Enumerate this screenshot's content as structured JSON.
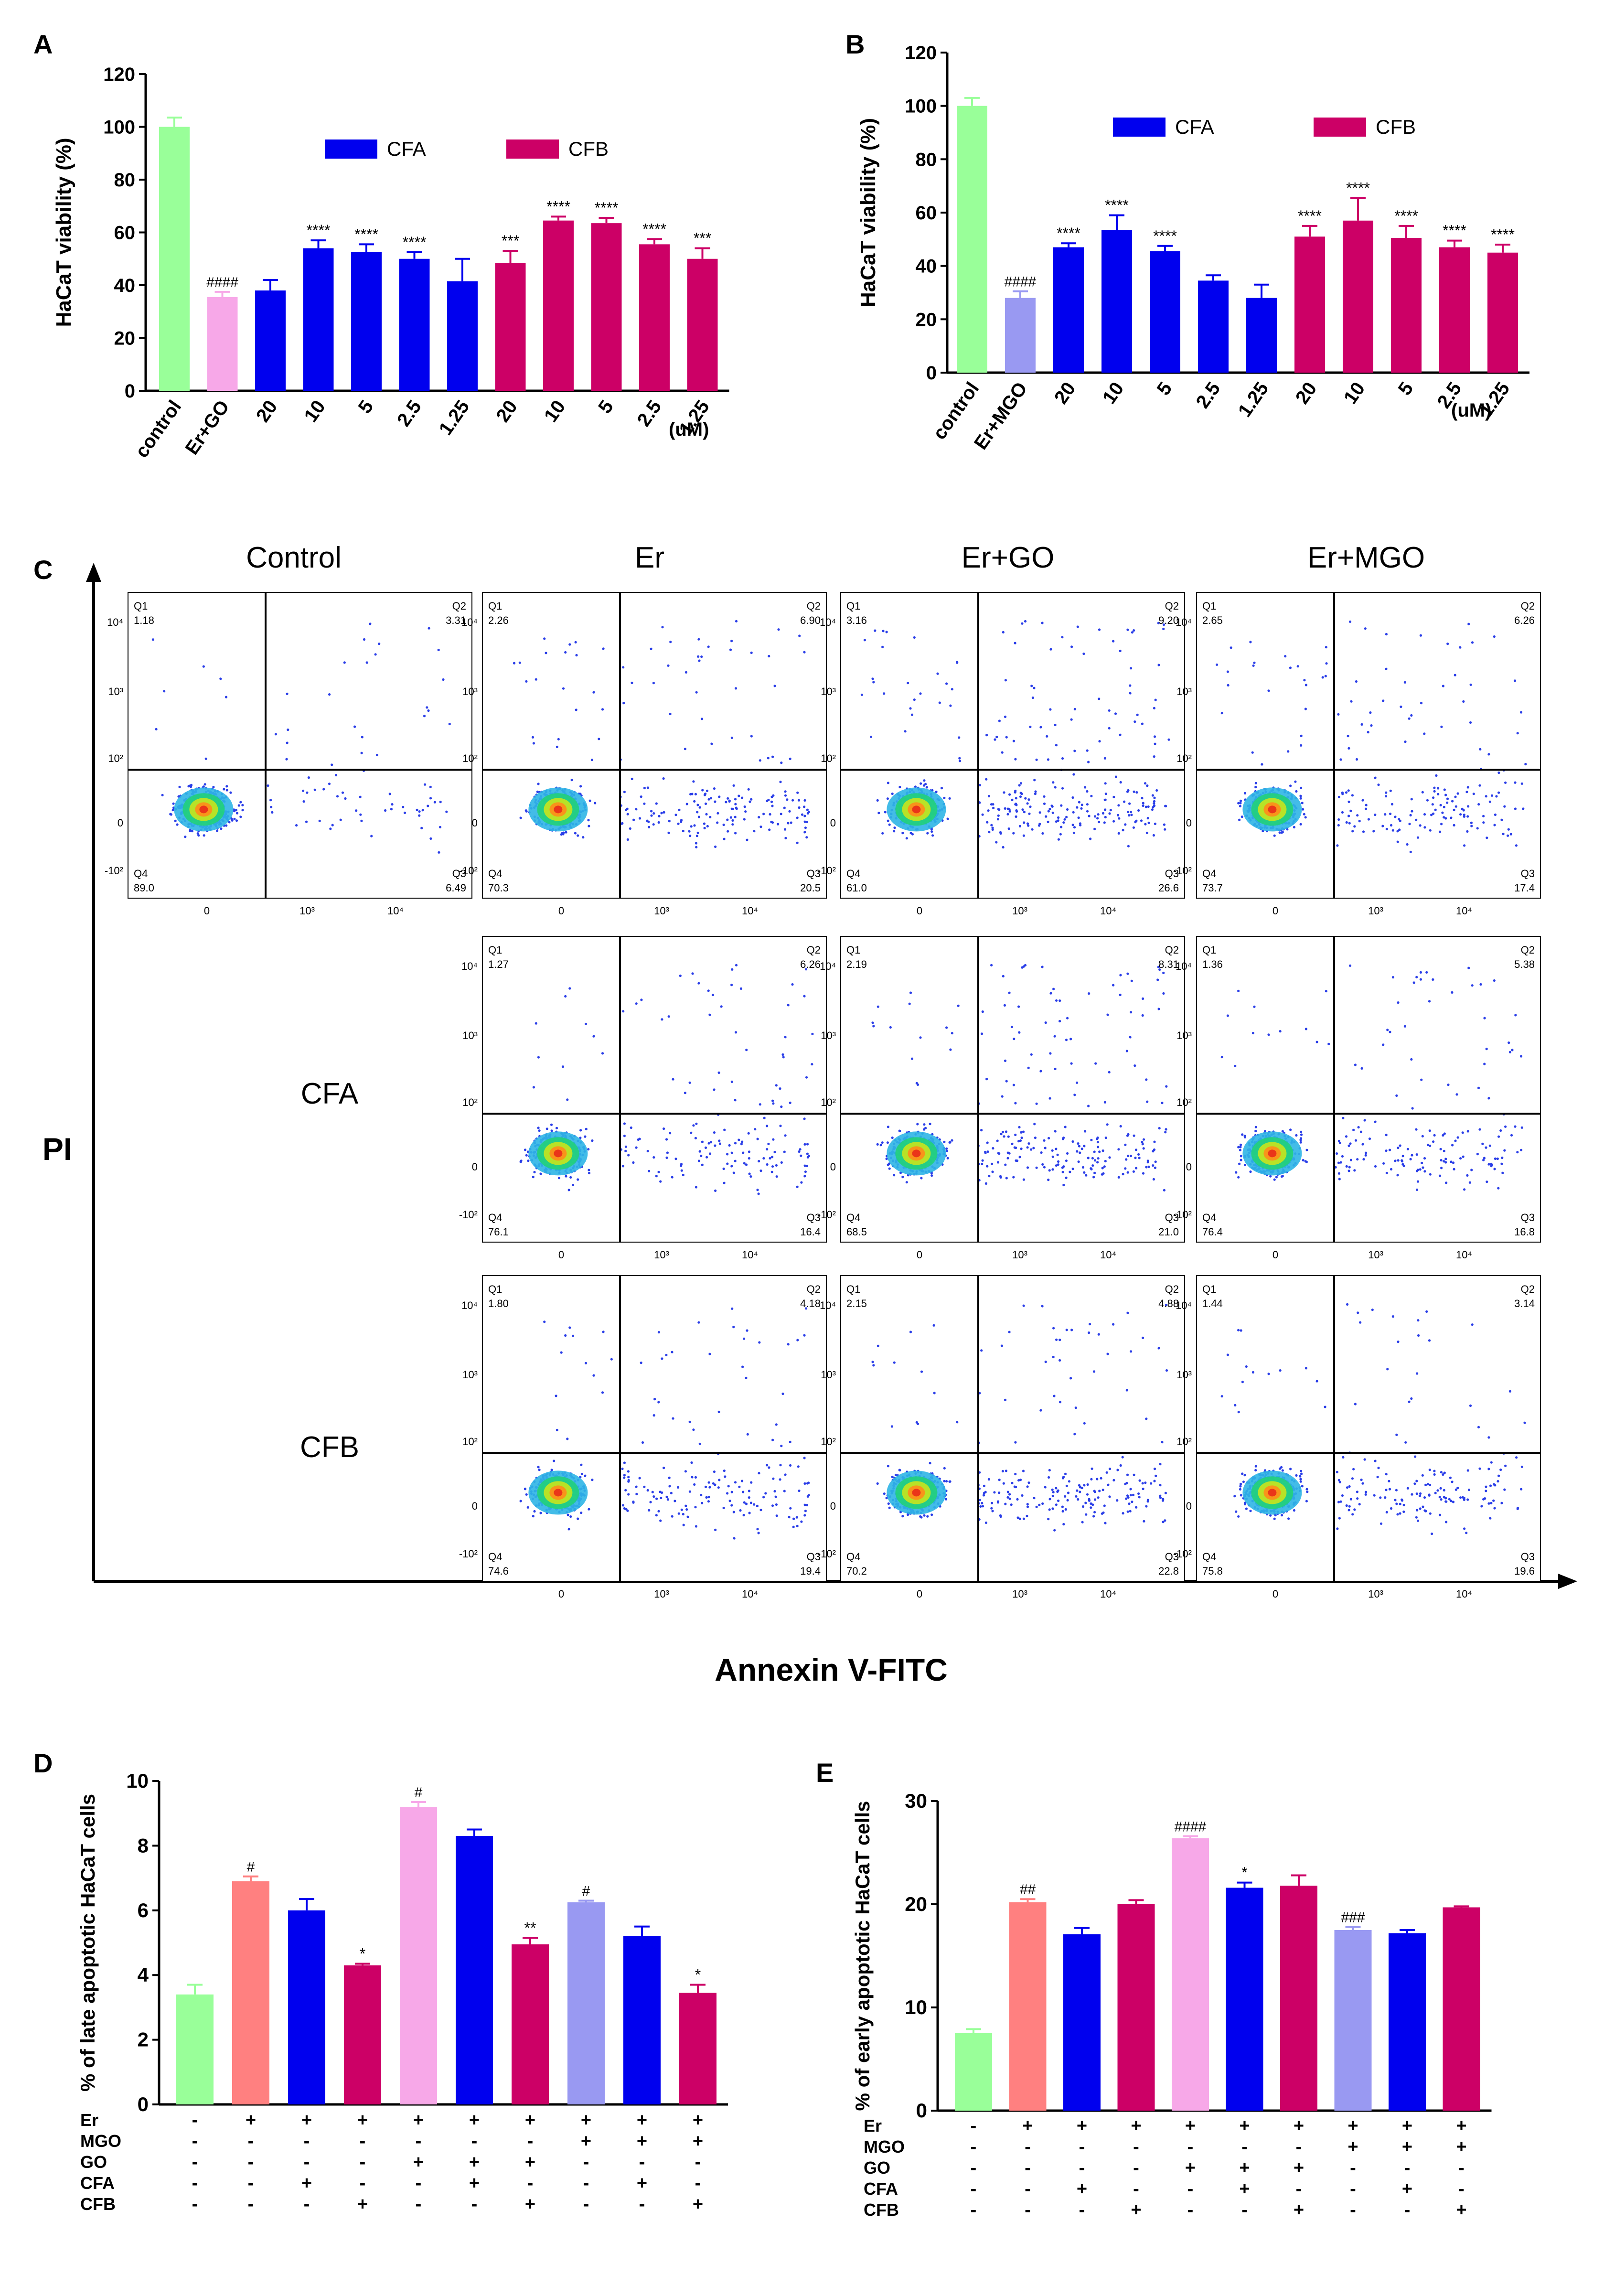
{
  "colors": {
    "control": "#99ff99",
    "er": "#ff8080",
    "er_go": "#f7a8e8",
    "er_mgo": "#9999f2",
    "cfa": "#0000ee",
    "cfb": "#cc0066"
  },
  "panel_a": {
    "letter": "A",
    "legend": [
      "CFA",
      "CFB"
    ],
    "unit": "(uM)"
  },
  "panel_b": {
    "letter": "B",
    "legend": [
      "CFA",
      "CFB"
    ],
    "unit": "(uM)"
  },
  "panel_c": {
    "letter": "C",
    "column_titles": [
      "Control",
      "Er",
      "Er+GO",
      "Er+MGO"
    ],
    "row_labels": [
      "CFA",
      "CFB"
    ],
    "y_axis_label": "PI",
    "x_axis_label": "Annexin V-FITC",
    "quadrant_labels": [
      "Q1",
      "Q2",
      "Q3",
      "Q4"
    ],
    "y_ticks": [
      "10⁴",
      "10³",
      "10²",
      "0",
      "-10²"
    ],
    "x_ticks": [
      "0",
      "10³",
      "10⁴"
    ],
    "plots": [
      {
        "row": 0,
        "col": 0,
        "q1": "1.18",
        "q2": "3.31",
        "q3": "6.49",
        "q4": "89.0"
      },
      {
        "row": 0,
        "col": 1,
        "q1": "2.26",
        "q2": "6.90",
        "q3": "20.5",
        "q4": "70.3"
      },
      {
        "row": 0,
        "col": 2,
        "q1": "3.16",
        "q2": "9.20",
        "q3": "26.6",
        "q4": "61.0"
      },
      {
        "row": 0,
        "col": 3,
        "q1": "2.65",
        "q2": "6.26",
        "q3": "17.4",
        "q4": "73.7"
      },
      {
        "row": 1,
        "col": 1,
        "q1": "1.27",
        "q2": "6.26",
        "q3": "16.4",
        "q4": "76.1"
      },
      {
        "row": 1,
        "col": 2,
        "q1": "2.19",
        "q2": "8.31",
        "q3": "21.0",
        "q4": "68.5"
      },
      {
        "row": 1,
        "col": 3,
        "q1": "1.36",
        "q2": "5.38",
        "q3": "16.8",
        "q4": "76.4"
      },
      {
        "row": 2,
        "col": 1,
        "q1": "1.80",
        "q2": "4.18",
        "q3": "19.4",
        "q4": "74.6"
      },
      {
        "row": 2,
        "col": 2,
        "q1": "2.15",
        "q2": "4.88",
        "q3": "22.8",
        "q4": "70.2"
      },
      {
        "row": 2,
        "col": 3,
        "q1": "1.44",
        "q2": "3.14",
        "q3": "19.6",
        "q4": "75.8"
      }
    ]
  },
  "panel_d": {
    "letter": "D"
  },
  "panel_e": {
    "letter": "E"
  },
  "chart_data": [
    {
      "id": "A",
      "type": "bar",
      "title": "",
      "ylabel": "HaCaT viability (%)",
      "xlabel": "",
      "ylim": [
        0,
        120
      ],
      "yticks": [
        0,
        20,
        40,
        60,
        80,
        100,
        120
      ],
      "legend": [
        "CFA",
        "CFB"
      ],
      "categories": [
        "control",
        "Er+GO",
        "20",
        "10",
        "5",
        "2.5",
        "1.25",
        "20",
        "10",
        "5",
        "2.5",
        "1.25"
      ],
      "values": [
        100,
        35.5,
        38,
        54,
        52.5,
        50,
        41.5,
        48.5,
        64.5,
        63.5,
        55.5,
        50
      ],
      "errors": [
        3.5,
        2,
        4,
        3,
        3,
        2.5,
        8.5,
        4.5,
        1.5,
        2,
        2,
        4
      ],
      "color_keys": [
        "control",
        "er_go",
        "cfa",
        "cfa",
        "cfa",
        "cfa",
        "cfa",
        "cfb",
        "cfb",
        "cfb",
        "cfb",
        "cfb"
      ],
      "annotations": [
        "",
        "####",
        "",
        "****",
        "****",
        "****",
        "",
        "***",
        "****",
        "****",
        "****",
        "***"
      ]
    },
    {
      "id": "B",
      "type": "bar",
      "title": "",
      "ylabel": "HaCaT viability (%)",
      "xlabel": "",
      "ylim": [
        0,
        120
      ],
      "yticks": [
        0,
        20,
        40,
        60,
        80,
        100,
        120
      ],
      "legend": [
        "CFA",
        "CFB"
      ],
      "categories": [
        "control",
        "Er+MGO",
        "20",
        "10",
        "5",
        "2.5",
        "1.25",
        "20",
        "10",
        "5",
        "2.5",
        "1.25"
      ],
      "values": [
        100,
        28,
        47,
        53.5,
        45.5,
        34.5,
        28,
        51,
        57,
        50.5,
        47,
        45
      ],
      "errors": [
        3,
        2.5,
        1.5,
        5.5,
        2,
        2,
        5,
        4,
        8.5,
        4.5,
        2.5,
        3
      ],
      "color_keys": [
        "control",
        "er_mgo",
        "cfa",
        "cfa",
        "cfa",
        "cfa",
        "cfa",
        "cfb",
        "cfb",
        "cfb",
        "cfb",
        "cfb"
      ],
      "annotations": [
        "",
        "####",
        "****",
        "****",
        "****",
        "",
        "",
        "****",
        "****",
        "****",
        "****",
        "****"
      ]
    },
    {
      "id": "D",
      "type": "bar",
      "title": "",
      "ylabel": "% of late apoptotic HaCaT cells",
      "xlabel": "",
      "ylim": [
        0,
        10
      ],
      "yticks": [
        0,
        2,
        4,
        6,
        8,
        10
      ],
      "values": [
        3.4,
        6.9,
        6.0,
        4.3,
        9.2,
        8.3,
        4.95,
        6.25,
        5.2,
        3.45
      ],
      "errors": [
        0.3,
        0.15,
        0.35,
        0.05,
        0.15,
        0.2,
        0.2,
        0.05,
        0.3,
        0.25
      ],
      "color_keys": [
        "control",
        "er",
        "cfa",
        "cfb",
        "er_go",
        "cfa",
        "cfb",
        "er_mgo",
        "cfa",
        "cfb"
      ],
      "annotations": [
        "",
        "#",
        "",
        "*",
        "#",
        "",
        "**",
        "#",
        "",
        "*"
      ],
      "treatment_rows": [
        {
          "label": "Er",
          "signs": [
            "-",
            "+",
            "+",
            "+",
            "+",
            "+",
            "+",
            "+",
            "+",
            "+"
          ]
        },
        {
          "label": "MGO",
          "signs": [
            "-",
            "-",
            "-",
            "-",
            "-",
            "-",
            "-",
            "+",
            "+",
            "+"
          ]
        },
        {
          "label": "GO",
          "signs": [
            "-",
            "-",
            "-",
            "-",
            "+",
            "+",
            "+",
            "-",
            "-",
            "-"
          ]
        },
        {
          "label": "CFA",
          "signs": [
            "-",
            "-",
            "+",
            "-",
            "-",
            "+",
            "-",
            "-",
            "+",
            "-"
          ]
        },
        {
          "label": "CFB",
          "signs": [
            "-",
            "-",
            "-",
            "+",
            "-",
            "-",
            "+",
            "-",
            "-",
            "+"
          ]
        }
      ]
    },
    {
      "id": "E",
      "type": "bar",
      "title": "",
      "ylabel": "% of early apoptotic HaCaT cells",
      "xlabel": "",
      "ylim": [
        0,
        30
      ],
      "yticks": [
        0,
        10,
        20,
        30
      ],
      "values": [
        7.5,
        20.2,
        17.1,
        20.0,
        26.4,
        21.6,
        21.8,
        17.5,
        17.2,
        19.7
      ],
      "errors": [
        0.4,
        0.3,
        0.6,
        0.4,
        0.2,
        0.5,
        1.0,
        0.3,
        0.3,
        0.1
      ],
      "color_keys": [
        "control",
        "er",
        "cfa",
        "cfb",
        "er_go",
        "cfa",
        "cfb",
        "er_mgo",
        "cfa",
        "cfb"
      ],
      "annotations": [
        "",
        "##",
        "",
        "",
        "####",
        "*",
        "",
        "###",
        "",
        ""
      ],
      "treatment_rows": [
        {
          "label": "Er",
          "signs": [
            "-",
            "+",
            "+",
            "+",
            "+",
            "+",
            "+",
            "+",
            "+",
            "+"
          ]
        },
        {
          "label": "MGO",
          "signs": [
            "-",
            "-",
            "-",
            "-",
            "-",
            "-",
            "-",
            "+",
            "+",
            "+"
          ]
        },
        {
          "label": "GO",
          "signs": [
            "-",
            "-",
            "-",
            "-",
            "+",
            "+",
            "+",
            "-",
            "-",
            "-"
          ]
        },
        {
          "label": "CFA",
          "signs": [
            "-",
            "-",
            "+",
            "-",
            "-",
            "+",
            "-",
            "-",
            "+",
            "-"
          ]
        },
        {
          "label": "CFB",
          "signs": [
            "-",
            "-",
            "-",
            "+",
            "-",
            "-",
            "+",
            "-",
            "-",
            "+"
          ]
        }
      ]
    }
  ]
}
